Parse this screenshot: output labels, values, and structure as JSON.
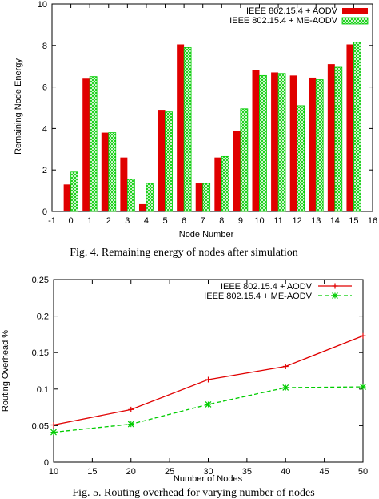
{
  "chart_data": [
    {
      "type": "bar",
      "caption": "Fig. 4.  Remaining energy of nodes after simulation",
      "xlabel": "Node Number",
      "ylabel": "Remaining Node Energy",
      "xlim": [
        -1,
        16
      ],
      "ylim": [
        0,
        10
      ],
      "x_ticks": [
        -1,
        0,
        1,
        2,
        3,
        4,
        5,
        6,
        7,
        8,
        9,
        10,
        11,
        12,
        13,
        14,
        15,
        16
      ],
      "y_ticks": [
        0,
        2,
        4,
        6,
        8,
        10
      ],
      "legend_position": "top-right",
      "categories": [
        0,
        1,
        2,
        3,
        4,
        5,
        6,
        7,
        8,
        9,
        10,
        11,
        12,
        13,
        14,
        15
      ],
      "series": [
        {
          "name": "IEEE 802.15.4 + AODV",
          "color": "#e00000",
          "values": [
            1.3,
            6.4,
            3.8,
            2.6,
            0.35,
            4.9,
            8.05,
            1.35,
            2.6,
            3.9,
            6.8,
            6.7,
            6.55,
            6.45,
            7.1,
            8.05
          ]
        },
        {
          "name": "IEEE 802.15.4 + ME-AODV",
          "color": "#00cc00",
          "pattern": "crosshatch",
          "values": [
            1.9,
            6.5,
            3.8,
            1.55,
            1.35,
            4.8,
            7.9,
            1.35,
            2.65,
            4.95,
            6.55,
            6.65,
            5.1,
            6.35,
            6.95,
            8.15
          ]
        }
      ]
    },
    {
      "type": "line",
      "caption": "Fig. 5. Routing overhead for varying number of nodes",
      "xlabel": "Number of Nodes",
      "ylabel": "Routing Overhead %",
      "xlim": [
        10,
        50
      ],
      "ylim": [
        0,
        0.25
      ],
      "x_ticks": [
        10,
        15,
        20,
        25,
        30,
        35,
        40,
        45,
        50
      ],
      "y_ticks": [
        0,
        0.05,
        0.1,
        0.15,
        0.2,
        0.25
      ],
      "legend_position": "top-right",
      "series": [
        {
          "name": "IEEE 802.15.4 + AODV",
          "color": "#e00000",
          "marker": "plus",
          "x": [
            10,
            20,
            30,
            40,
            50
          ],
          "y": [
            0.051,
            0.072,
            0.113,
            0.131,
            0.173
          ]
        },
        {
          "name": "IEEE 802.15.4 + ME-AODV",
          "color": "#00cc00",
          "marker": "x",
          "dashed": true,
          "x": [
            10,
            20,
            30,
            40,
            50
          ],
          "y": [
            0.041,
            0.052,
            0.079,
            0.102,
            0.103
          ]
        }
      ]
    }
  ]
}
